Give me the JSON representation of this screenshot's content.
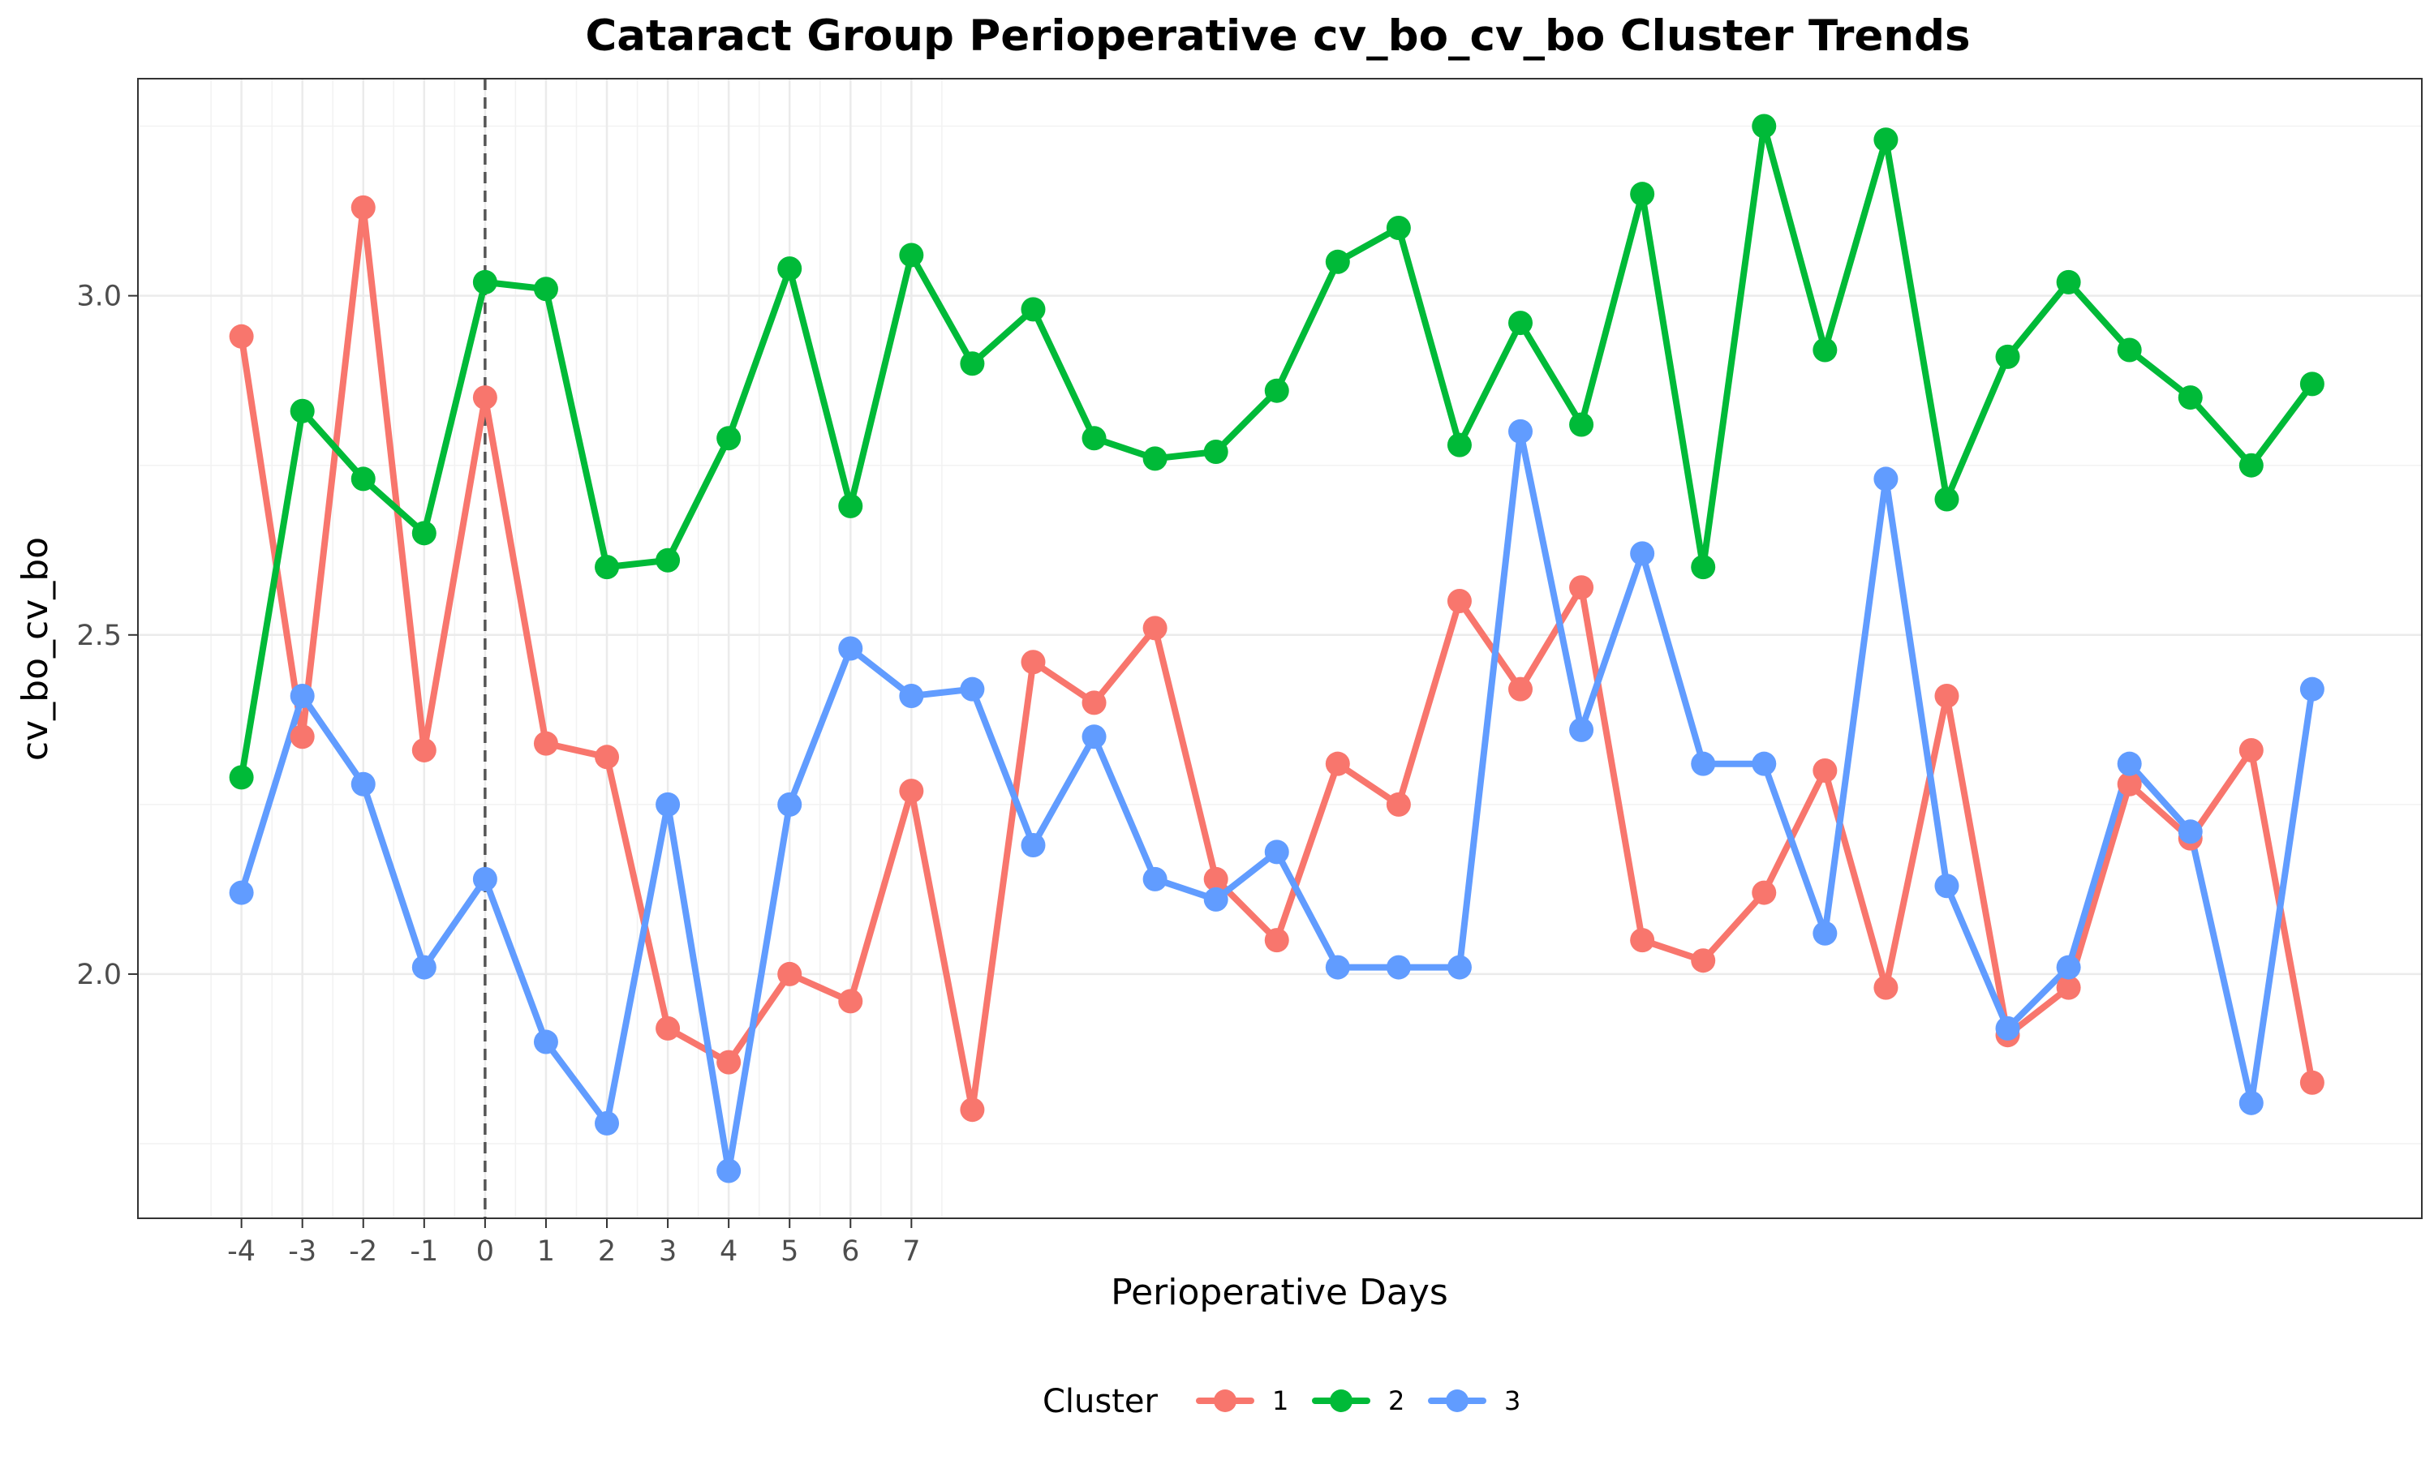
{
  "chart_data": {
    "type": "line",
    "title": "Cataract Group Perioperative cv_bo_cv_bo Cluster Trends",
    "xlabel": "Perioperative Days",
    "ylabel": "cv_bo_cv_bo",
    "xlim": [
      -5.7,
      31.8
    ],
    "ylim": [
      1.64,
      3.32
    ],
    "x_ticks": [
      -4,
      -3,
      -2,
      -1,
      0,
      1,
      2,
      3,
      4,
      5,
      6,
      7
    ],
    "x_tick_labels": [
      "-4",
      "-3",
      "-2",
      "-1",
      "0",
      "1",
      "2",
      "3",
      "4",
      "5",
      "6",
      "7"
    ],
    "y_ticks": [
      2.0,
      2.5,
      3.0
    ],
    "y_tick_labels": [
      "2.0",
      "2.5",
      "3.0"
    ],
    "grid": true,
    "vline_x": 0,
    "legend_title": "Cluster",
    "legend_position": "bottom",
    "x": [
      -4,
      -3,
      -2,
      -1,
      0,
      1,
      2,
      3,
      4,
      5,
      6,
      7,
      8,
      9,
      10,
      11,
      12,
      13,
      14,
      15,
      16,
      17,
      18,
      19,
      20,
      21,
      22,
      23,
      24,
      25,
      26,
      27,
      28,
      29,
      30
    ],
    "series": [
      {
        "name": "1",
        "color": "#F8766D",
        "values": [
          2.94,
          2.35,
          3.13,
          2.33,
          2.85,
          2.34,
          2.32,
          1.92,
          1.87,
          2.0,
          1.96,
          2.27,
          1.8,
          2.46,
          2.4,
          2.51,
          2.14,
          2.05,
          2.31,
          2.25,
          2.55,
          2.42,
          2.57,
          2.05,
          2.02,
          2.12,
          2.3,
          1.98,
          2.41,
          1.91,
          1.98,
          2.28,
          2.2,
          2.33,
          1.84
        ]
      },
      {
        "name": "2",
        "color": "#00BA38",
        "values": [
          2.29,
          2.83,
          2.73,
          2.65,
          3.02,
          3.01,
          2.6,
          2.61,
          2.79,
          3.04,
          2.69,
          3.06,
          2.9,
          2.98,
          2.79,
          2.76,
          2.77,
          2.86,
          3.05,
          3.1,
          2.78,
          2.96,
          2.81,
          3.15,
          2.6,
          3.25,
          2.92,
          3.23,
          2.7,
          2.91,
          3.02,
          2.92,
          2.85,
          2.75,
          2.87
        ]
      },
      {
        "name": "3",
        "color": "#619CFF",
        "values": [
          2.12,
          2.41,
          2.28,
          2.01,
          2.14,
          1.9,
          1.78,
          2.25,
          1.71,
          2.25,
          2.48,
          2.41,
          2.42,
          2.19,
          2.35,
          2.14,
          2.11,
          2.18,
          2.01,
          2.01,
          2.01,
          2.8,
          2.36,
          2.62,
          2.31,
          2.31,
          2.06,
          2.73,
          2.13,
          1.92,
          2.01,
          2.31,
          2.21,
          1.81,
          2.42
        ]
      }
    ]
  }
}
